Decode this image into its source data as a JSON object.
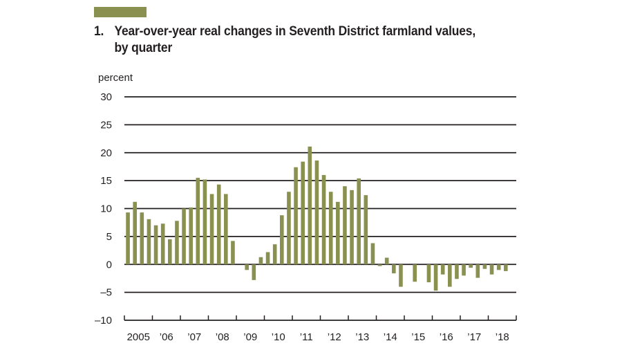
{
  "figure": {
    "number": "1.",
    "title_line1": "Year-over-year real changes in Seventh District farmland values,",
    "title_line2": "by quarter",
    "accent_color": "#8a9150"
  },
  "chart_data": {
    "type": "bar",
    "title": "Year-over-year real changes in Seventh District farmland values, by quarter",
    "ylabel": "percent",
    "xlabel": "",
    "ylim": [
      -10,
      30
    ],
    "yticks": [
      30,
      25,
      20,
      15,
      10,
      5,
      0,
      -5,
      -10
    ],
    "ytick_labels": [
      "30",
      "25",
      "20",
      "15",
      "10",
      "5",
      "0",
      "–5",
      "–10"
    ],
    "grid": true,
    "bar_color": "#8a9150",
    "year_labels": [
      "2005",
      "’06",
      "’07",
      "’08",
      "’09",
      "’10",
      "’11",
      "’12",
      "’13",
      "’14",
      "’15",
      "’16",
      "’17",
      "’18"
    ],
    "categories": [
      "2005 Q1",
      "2005 Q2",
      "2005 Q3",
      "2005 Q4",
      "2006 Q1",
      "2006 Q2",
      "2006 Q3",
      "2006 Q4",
      "2007 Q1",
      "2007 Q2",
      "2007 Q3",
      "2007 Q4",
      "2008 Q1",
      "2008 Q2",
      "2008 Q3",
      "2008 Q4",
      "2009 Q1",
      "2009 Q2",
      "2009 Q3",
      "2009 Q4",
      "2010 Q1",
      "2010 Q2",
      "2010 Q3",
      "2010 Q4",
      "2011 Q1",
      "2011 Q2",
      "2011 Q3",
      "2011 Q4",
      "2012 Q1",
      "2012 Q2",
      "2012 Q3",
      "2012 Q4",
      "2013 Q1",
      "2013 Q2",
      "2013 Q3",
      "2013 Q4",
      "2014 Q1",
      "2014 Q2",
      "2014 Q3",
      "2014 Q4",
      "2015 Q1",
      "2015 Q2",
      "2015 Q3",
      "2015 Q4",
      "2016 Q1",
      "2016 Q2",
      "2016 Q3",
      "2016 Q4",
      "2017 Q1",
      "2017 Q2",
      "2017 Q3",
      "2017 Q4",
      "2018 Q1",
      "2018 Q2",
      "2018 Q3",
      "2018 Q4"
    ],
    "values": [
      9.3,
      11.2,
      9.3,
      8.1,
      7.0,
      7.3,
      4.5,
      7.8,
      10.0,
      10.2,
      15.5,
      15.2,
      12.6,
      14.3,
      12.6,
      4.2,
      0.0,
      -1.0,
      -2.8,
      1.3,
      2.2,
      3.6,
      8.8,
      13.0,
      17.4,
      18.4,
      21.1,
      18.6,
      16.0,
      13.0,
      11.2,
      14.0,
      13.3,
      15.4,
      12.4,
      3.8,
      -0.3,
      1.2,
      -1.6,
      -4.0,
      0.0,
      -3.1,
      0.0,
      -3.2,
      -4.7,
      -1.8,
      -4.0,
      -2.6,
      -2.0,
      -0.6,
      -2.4,
      -0.8,
      -1.8,
      -1.0,
      -1.2,
      0.0
    ]
  }
}
